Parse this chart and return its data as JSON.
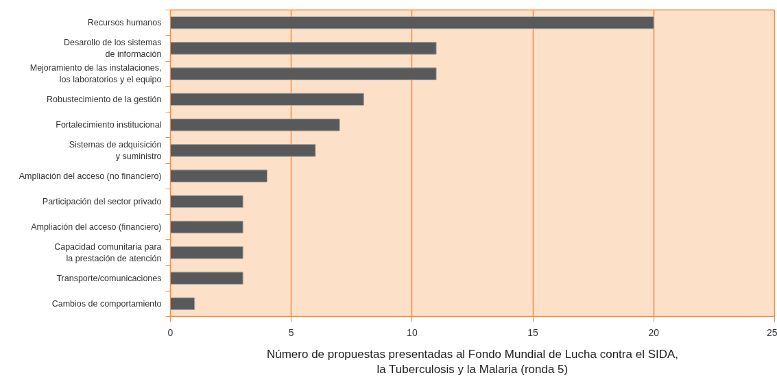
{
  "chart_data": {
    "type": "bar",
    "orientation": "horizontal",
    "categories": [
      "Recursos humanos",
      "Desarollo de los sistemas\nde información",
      "Mejoramiento de las instalaciones,\nlos laboratorios y el equipo",
      "Robustecimiento de la gestión",
      "Fortalecimiento institucional",
      "Sistemas de adquisición\ny suministro",
      "Ampliación del acceso (no financiero)",
      "Participación del sector privado",
      "Ampliación del acceso (financiero)",
      "Capacidad comunitaria para\nla prestación de atención",
      "Transporte/comunicaciones",
      "Cambios de comportamiento"
    ],
    "values": [
      20,
      11,
      11,
      8,
      7,
      6,
      4,
      3,
      3,
      3,
      3,
      1
    ],
    "color": "#58595b",
    "xlabel": "Número de propuestas presentadas al Fondo Mundial de Lucha contra el SIDA,\nla Tuberculosis y la Malaria (ronda 5)",
    "xlim": [
      0,
      25
    ],
    "xticks": [
      0,
      5,
      10,
      15,
      20,
      25
    ],
    "grid": "x"
  }
}
